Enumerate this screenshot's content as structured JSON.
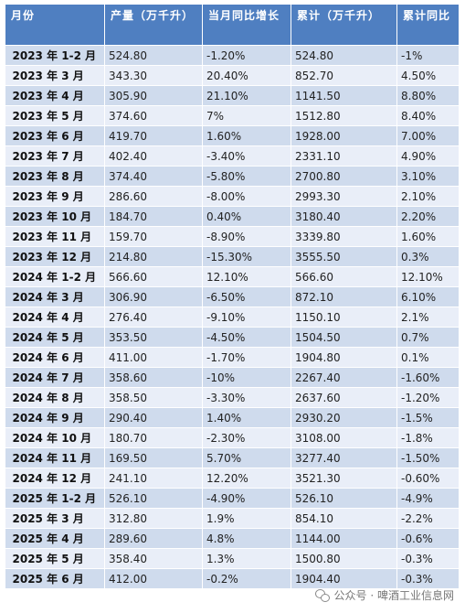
{
  "table": {
    "headers": [
      "月份",
      "产量（万千升）",
      "当月同比增长",
      "累计（万千升）",
      "累计同比"
    ],
    "rows": [
      [
        "2023 年 1-2 月",
        "524.80",
        "-1.20%",
        "524.80",
        "-1%"
      ],
      [
        "2023 年 3 月",
        "343.30",
        "20.40%",
        "852.70",
        "4.50%"
      ],
      [
        "2023 年 4 月",
        "305.90",
        "21.10%",
        "1141.50",
        "8.80%"
      ],
      [
        "2023 年 5 月",
        "374.60",
        "7%",
        "1512.80",
        "8.40%"
      ],
      [
        "2023 年 6 月",
        "419.70",
        "1.60%",
        "1928.00",
        "7.00%"
      ],
      [
        "2023 年 7 月",
        "402.40",
        "-3.40%",
        "2331.10",
        "4.90%"
      ],
      [
        "2023 年 8 月",
        "374.40",
        "-5.80%",
        "2700.80",
        "3.10%"
      ],
      [
        "2023 年 9 月",
        "286.60",
        "-8.00%",
        "2993.30",
        "2.10%"
      ],
      [
        "2023 年 10 月",
        "184.70",
        "0.40%",
        "3180.40",
        "2.20%"
      ],
      [
        "2023 年 11 月",
        "159.70",
        "-8.90%",
        "3339.80",
        "1.60%"
      ],
      [
        "2023 年 12 月",
        "214.80",
        "-15.30%",
        "3555.50",
        "0.3%"
      ],
      [
        "2024 年 1-2 月",
        "566.60",
        "12.10%",
        "566.60",
        "12.10%"
      ],
      [
        "2024 年 3 月",
        "306.90",
        "-6.50%",
        "872.10",
        "6.10%"
      ],
      [
        "2024 年 4 月",
        "276.40",
        "-9.10%",
        "1150.10",
        "2.1%"
      ],
      [
        "2024 年 5 月",
        "353.50",
        "-4.50%",
        "1504.50",
        "0.7%"
      ],
      [
        "2024 年 6 月",
        "411.00",
        "-1.70%",
        "1904.80",
        "0.1%"
      ],
      [
        "2024 年 7 月",
        "358.60",
        "-10%",
        "2267.40",
        "-1.60%"
      ],
      [
        "2024 年 8 月",
        "358.50",
        "-3.30%",
        "2637.60",
        "-1.20%"
      ],
      [
        "2024 年 9 月",
        "290.40",
        "1.40%",
        "2930.20",
        "-1.5%"
      ],
      [
        "2024 年 10 月",
        "180.70",
        "-2.30%",
        "3108.00",
        "-1.8%"
      ],
      [
        "2024 年 11 月",
        "169.50",
        "5.70%",
        "3277.40",
        "-1.50%"
      ],
      [
        "2024 年 12 月",
        "241.10",
        "12.20%",
        "3521.30",
        "-0.60%"
      ],
      [
        "2025 年 1-2 月",
        "526.10",
        "-4.90%",
        "526.10",
        "-4.9%"
      ],
      [
        "2025 年 3 月",
        "312.80",
        "1.9%",
        "854.10",
        "-2.2%"
      ],
      [
        "2025 年 4 月",
        "289.60",
        "4.8%",
        "1144.00",
        "-0.6%"
      ],
      [
        "2025 年 5 月",
        "358.40",
        "1.3%",
        "1500.80",
        "-0.3%"
      ],
      [
        "2025 年 6 月",
        "412.00",
        "-0.2%",
        "1904.40",
        "-0.3%"
      ]
    ]
  },
  "footer": {
    "icon": "wechat-icon",
    "text": "公众号 · 啤酒工业信息网"
  }
}
